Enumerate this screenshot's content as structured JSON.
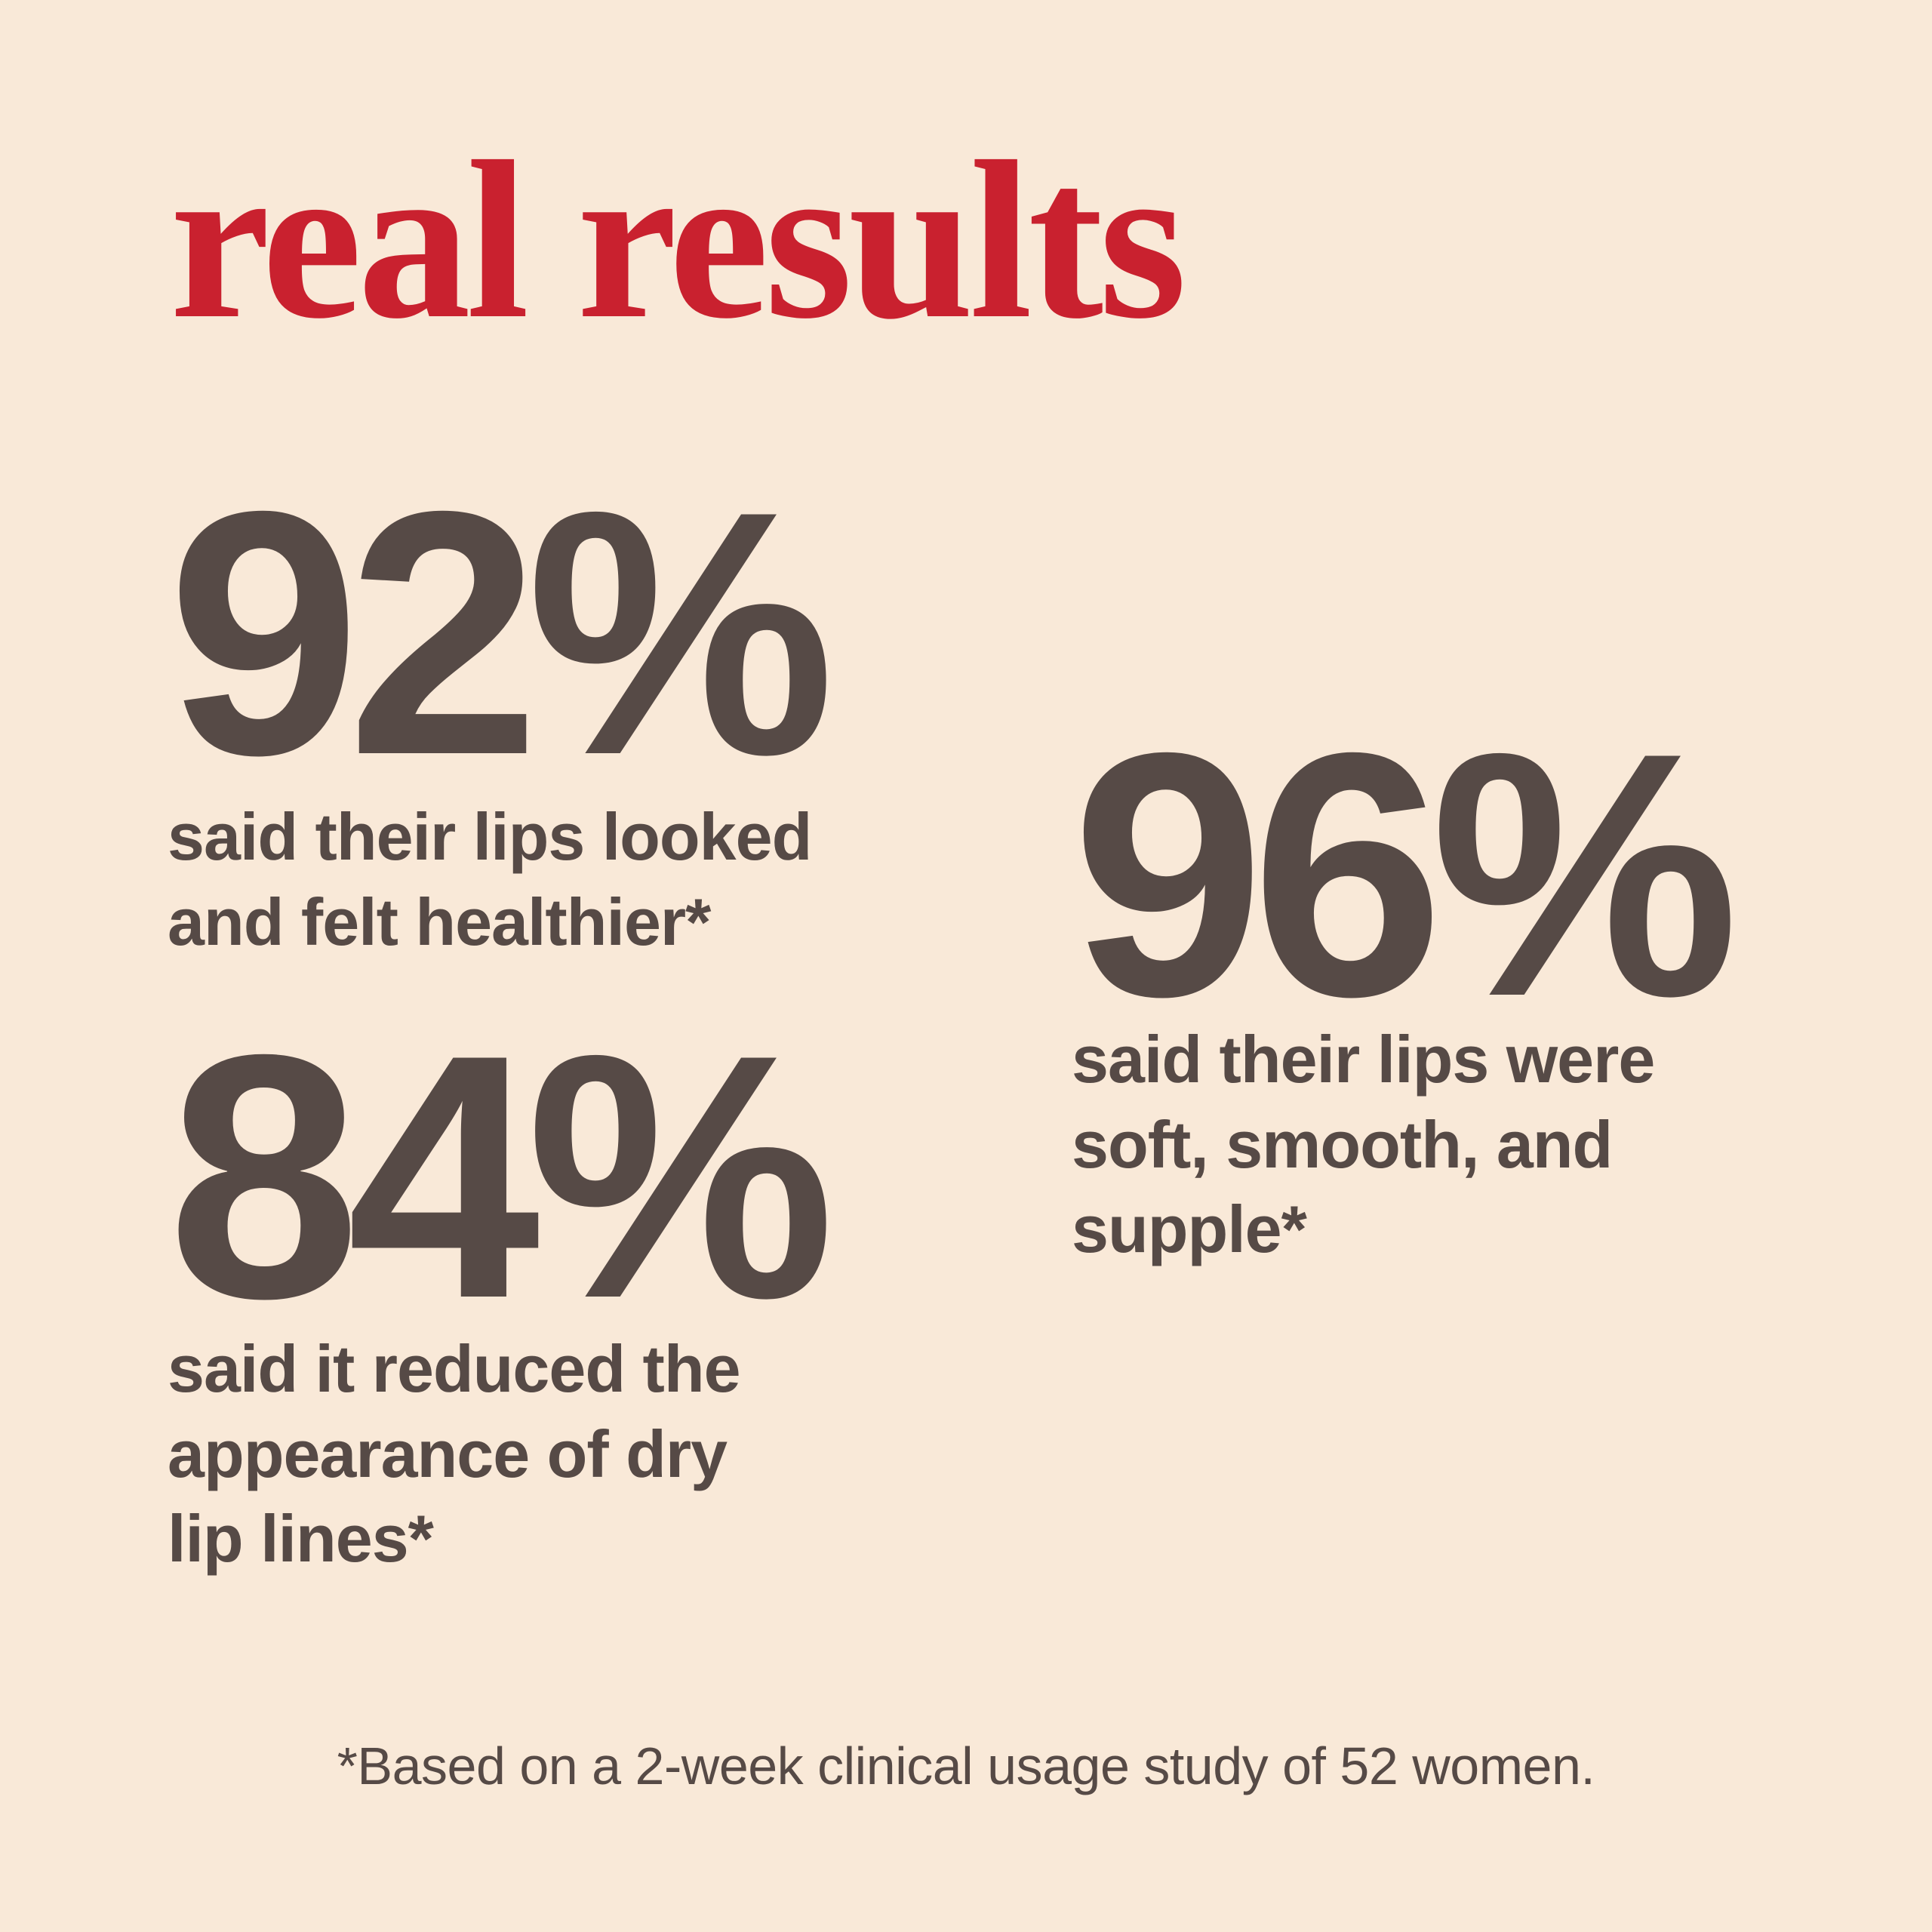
{
  "page": {
    "title": "real results",
    "footnote": "*Based on a 2-week clinical usage study of 52 women."
  },
  "stats": [
    {
      "value": "92%",
      "percent": 92,
      "caption": "said their lips looked\nand felt healthier*"
    },
    {
      "value": "96%",
      "percent": 96,
      "caption": "said their lips were\nsoft, smooth, and\nsupple*"
    },
    {
      "value": "84%",
      "percent": 84,
      "caption": "said it reduced the\nappearance of dry\nlip lines*"
    }
  ],
  "colors": {
    "background": "#f9e9d8",
    "text_dark": "#564a46",
    "accent_red": "#c9212f"
  }
}
